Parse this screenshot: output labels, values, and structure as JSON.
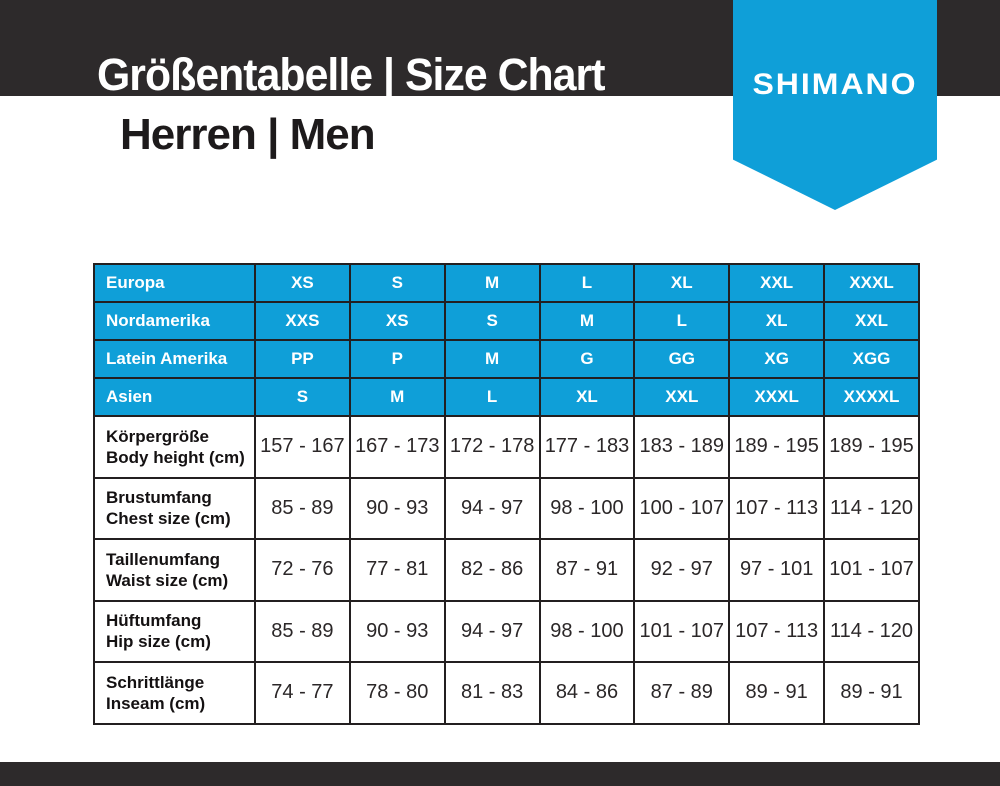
{
  "header": {
    "title": "Größentabelle | Size Chart",
    "subtitle": "Herren | Men",
    "brand": "SHIMANO"
  },
  "colors": {
    "blue": "#0f9fd8",
    "charcoal": "#2d2a2b",
    "border": "#231f20",
    "text_dark": "#2b2728"
  },
  "table": {
    "size_rows": [
      {
        "label": "Europa",
        "values": [
          "XS",
          "S",
          "M",
          "L",
          "XL",
          "XXL",
          "XXXL"
        ]
      },
      {
        "label": "Nordamerika",
        "values": [
          "XXS",
          "XS",
          "S",
          "M",
          "L",
          "XL",
          "XXL"
        ]
      },
      {
        "label": "Latein Amerika",
        "values": [
          "PP",
          "P",
          "M",
          "G",
          "GG",
          "XG",
          "XGG"
        ]
      },
      {
        "label": "Asien",
        "values": [
          "S",
          "M",
          "L",
          "XL",
          "XXL",
          "XXXL",
          "XXXXL"
        ]
      }
    ],
    "measure_rows": [
      {
        "label_de": "Körpergröße",
        "label_en": "Body height (cm)",
        "values": [
          "157 - 167",
          "167 - 173",
          "172 - 178",
          "177 - 183",
          "183 - 189",
          "189 - 195",
          "189 - 195"
        ]
      },
      {
        "label_de": "Brustumfang",
        "label_en": "Chest size (cm)",
        "values": [
          "85 - 89",
          "90 - 93",
          "94 - 97",
          "98 - 100",
          "100 - 107",
          "107 - 113",
          "114 - 120"
        ]
      },
      {
        "label_de": "Taillenumfang",
        "label_en": "Waist size (cm)",
        "values": [
          "72 - 76",
          "77 - 81",
          "82 - 86",
          "87 - 91",
          "92 - 97",
          "97 - 101",
          "101 - 107"
        ]
      },
      {
        "label_de": "Hüftumfang",
        "label_en": "Hip size (cm)",
        "values": [
          "85 - 89",
          "90 - 93",
          "94 - 97",
          "98 - 100",
          "101 - 107",
          "107 - 113",
          "114 - 120"
        ]
      },
      {
        "label_de": "Schrittlänge",
        "label_en": "Inseam (cm)",
        "values": [
          "74 - 77",
          "78 - 80",
          "81 - 83",
          "84 - 86",
          "87 - 89",
          "89 - 91",
          "89 - 91"
        ]
      }
    ]
  }
}
